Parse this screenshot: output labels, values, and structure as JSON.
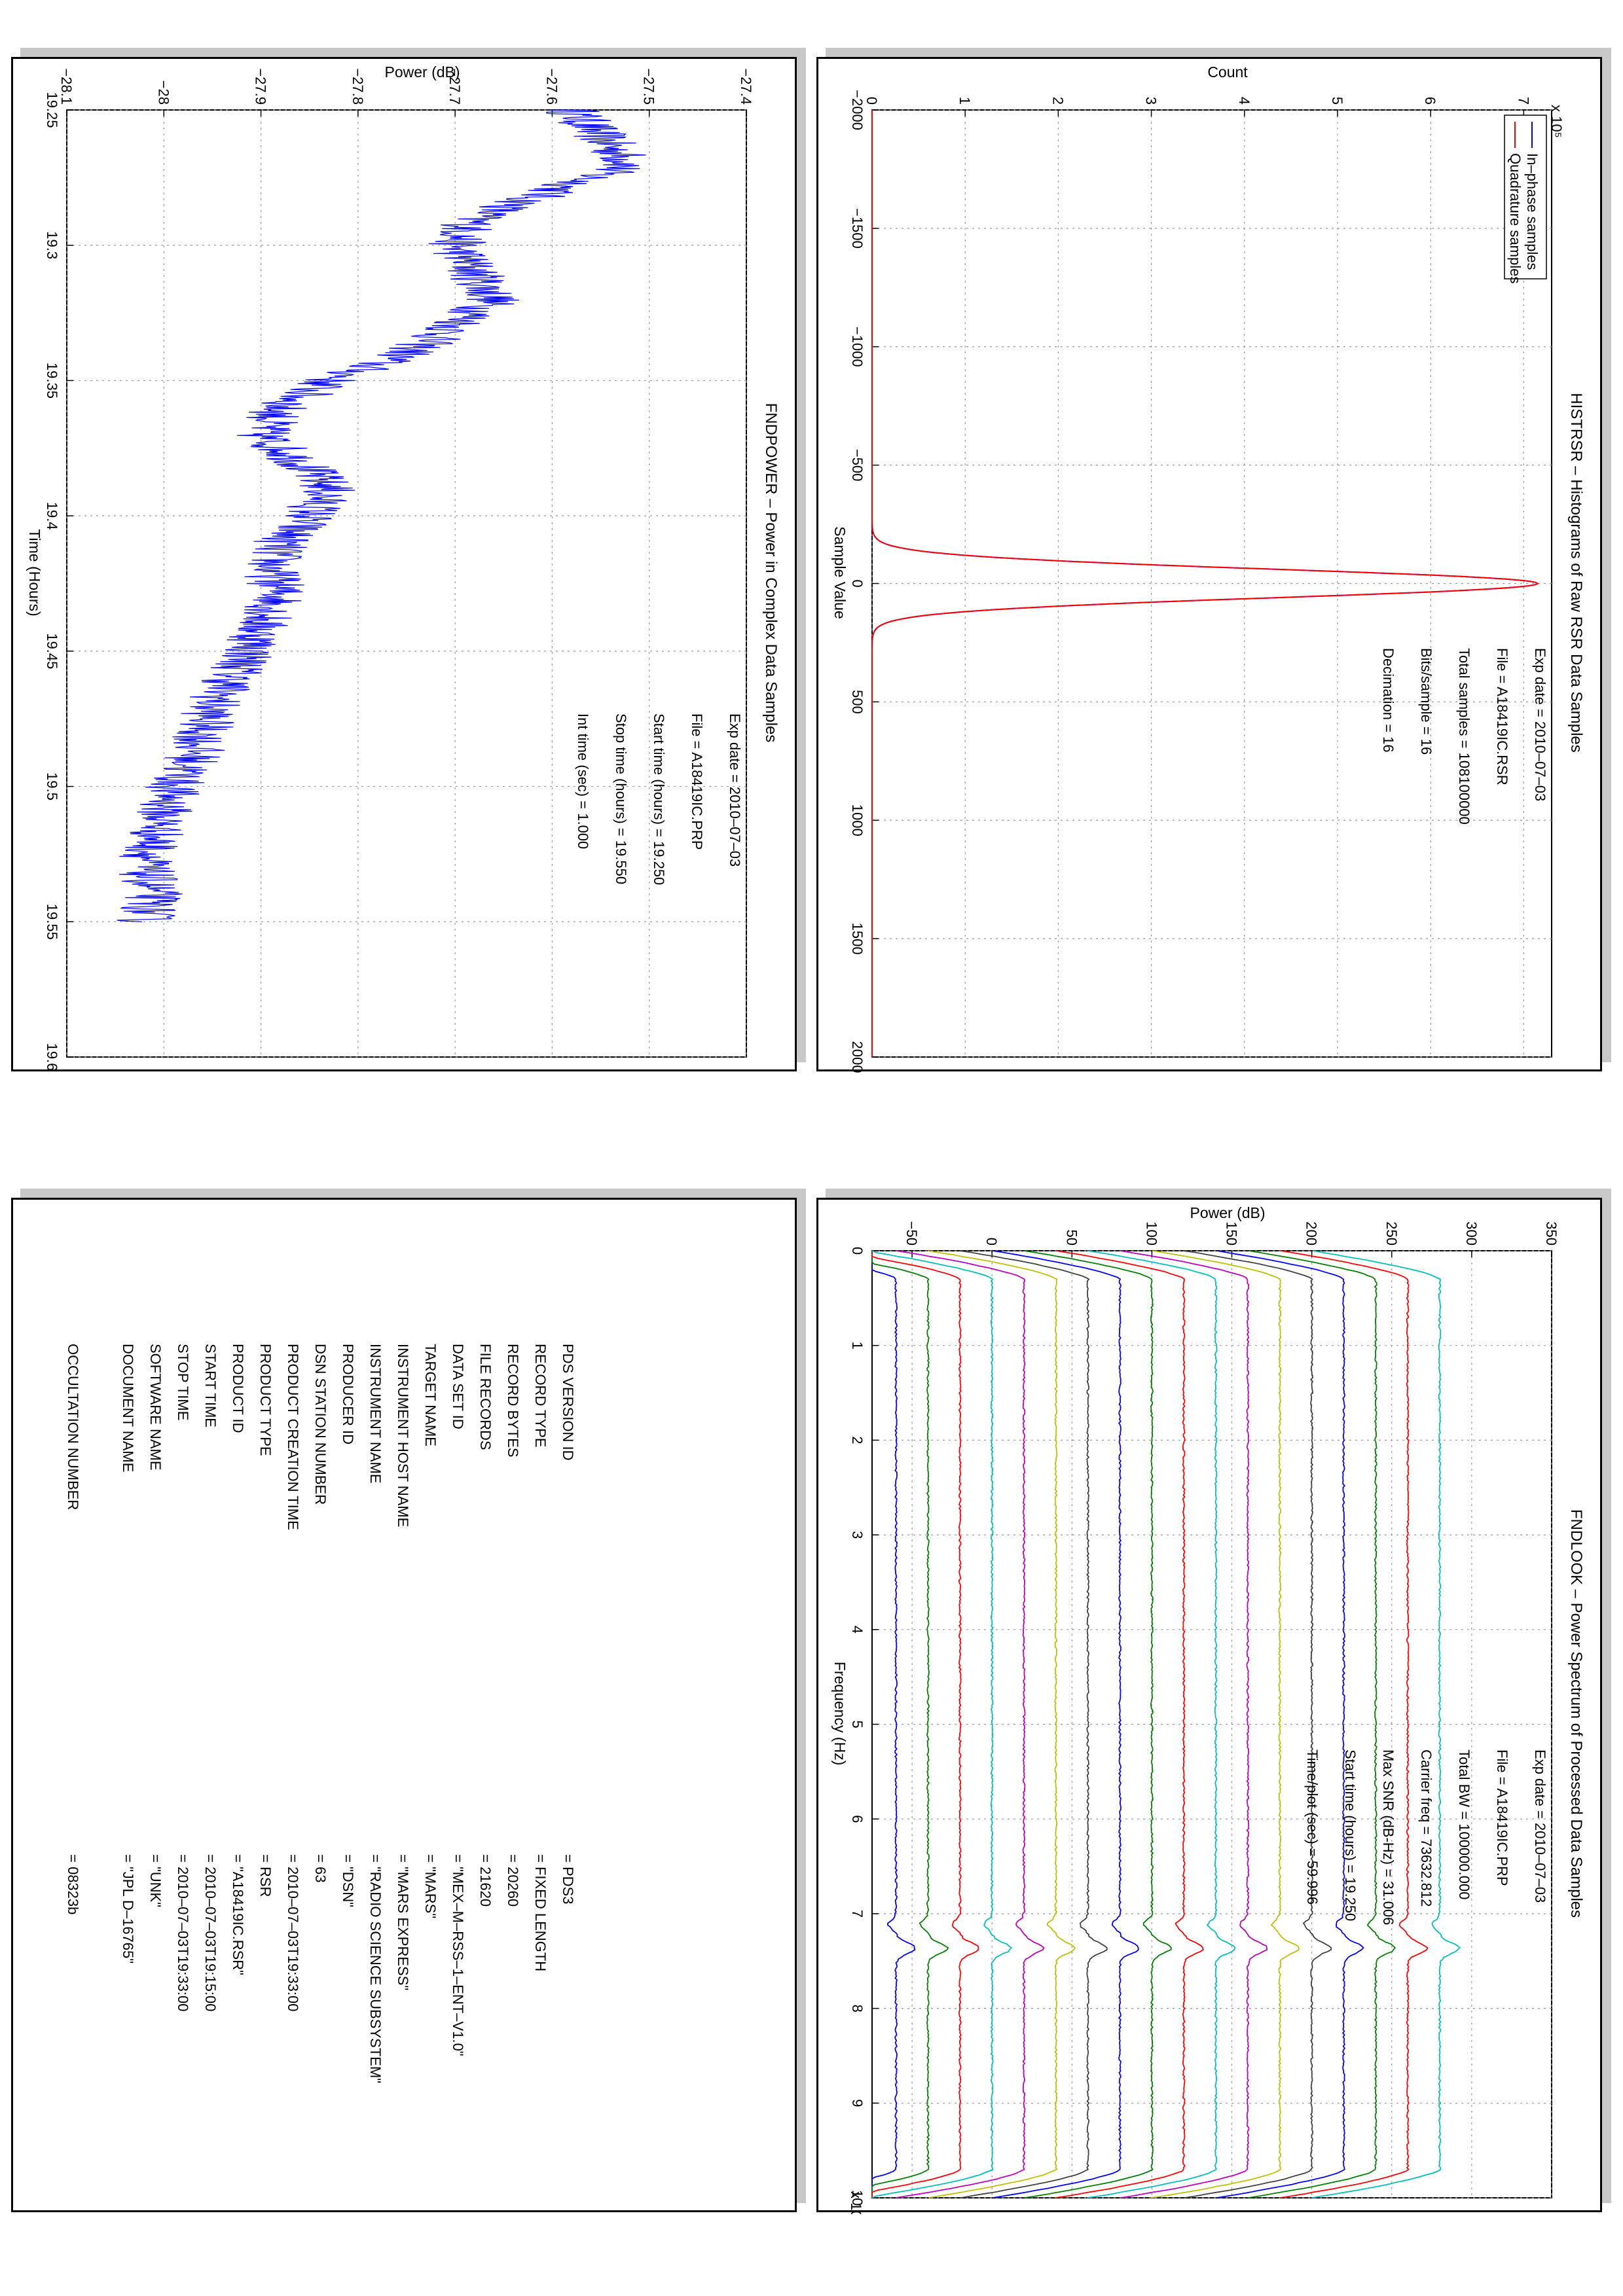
{
  "histrsr": {
    "title": "HISTRSR – Histograms of Raw RSR Data Samples",
    "xlabel": "Sample Value",
    "ylabel": "Count",
    "y_exponent": "x 10⁵",
    "legend": [
      "In–phase samples",
      "Quadrature samples"
    ],
    "info": [
      "Exp date = 2010–07–03",
      "File = A18419IC.RSR",
      "Total samples =  108100000",
      "Bits/sample   =       16",
      "Decimation    =       16"
    ]
  },
  "fndpower": {
    "title": "FNDPOWER – Power in Complex Data Samples",
    "xlabel": "Time (Hours)",
    "ylabel": "Power (dB)",
    "info": [
      "Exp date = 2010–07–03",
      "File = A18419IC.PRP",
      "Start time (hours) = 19.250",
      "Stop time (hours)  = 19.550",
      "Int time (sec) =       1.000"
    ]
  },
  "fndlook": {
    "title": "FNDLOOK – Power Spectrum of Processed Data Samples",
    "xlabel": "Frequency (Hz)",
    "ylabel": "Power (dB)",
    "x_exponent": "x 10⁴",
    "info": [
      "Exp date = 2010–07–03",
      "File = A18419IC.PRP",
      "Total BW =   100000.000",
      "Carrier freq =   73632.812",
      "Max SNR (dB-Hz) =    31.006",
      "Start time (hours) =   19.250",
      "Time/plot (sec) =    59.996"
    ]
  },
  "label": {
    "rows": [
      {
        "key": "PDS VERSION ID",
        "value": "=  PDS3"
      },
      {
        "key": "RECORD TYPE",
        "value": "=  FIXED LENGTH"
      },
      {
        "key": "RECORD BYTES",
        "value": "=  20260"
      },
      {
        "key": "FILE RECORDS",
        "value": "=  21620"
      },
      {
        "key": "DATA SET ID",
        "value": "=  \"MEX–M–RSS–1–ENT–V1.0\""
      },
      {
        "key": "TARGET NAME",
        "value": "=  \"MARS\""
      },
      {
        "key": "INSTRUMENT HOST NAME",
        "value": "=  \"MARS EXPRESS\""
      },
      {
        "key": "INSTRUMENT NAME",
        "value": "=  \"RADIO SCIENCE SUBSYSTEM\""
      },
      {
        "key": "PRODUCER ID",
        "value": "=  \"DSN\""
      },
      {
        "key": "DSN STATION NUMBER",
        "value": "=  63"
      },
      {
        "key": "PRODUCT CREATION TIME",
        "value": "=  2010–07–03T19:33:00"
      },
      {
        "key": "PRODUCT TYPE",
        "value": "=  RSR"
      },
      {
        "key": "PRODUCT ID",
        "value": "=  \"A18419IC.RSR\""
      },
      {
        "key": "START TIME",
        "value": "=  2010–07–03T19:15:00"
      },
      {
        "key": "STOP TIME",
        "value": "=  2010–07–03T19:33:00"
      },
      {
        "key": "SOFTWARE NAME",
        "value": "=  \"UNK\""
      },
      {
        "key": "DOCUMENT NAME",
        "value": "=  \"JPL D–16765\""
      },
      {
        "key": "",
        "value": ""
      },
      {
        "key": "OCCULTATION NUMBER",
        "value": "=  08323b"
      }
    ]
  },
  "chart_data": [
    {
      "id": "histrsr",
      "type": "line",
      "title": "HISTRSR – Histograms of Raw RSR Data Samples",
      "xlabel": "Sample Value",
      "ylabel": "Count",
      "xlim": [
        -2000,
        2000
      ],
      "ylim": [
        0,
        7.3
      ],
      "y_scale_note": "x 10^5",
      "xticks": [
        -2000,
        -1500,
        -1000,
        -500,
        0,
        500,
        1000,
        1500,
        2000
      ],
      "yticks": [
        0,
        1,
        2,
        3,
        4,
        5,
        6,
        7
      ],
      "grid": true,
      "legend_position": "top-left",
      "series": [
        {
          "name": "In–phase samples",
          "color": "#0000ff",
          "peak": 7.15,
          "center": 0,
          "sigma": 60
        },
        {
          "name": "Quadrature samples",
          "color": "#ff0000",
          "peak": 7.15,
          "center": 0,
          "sigma": 60
        }
      ]
    },
    {
      "id": "fndpower",
      "type": "line",
      "title": "FNDPOWER – Power in Complex Data Samples",
      "xlabel": "Time (Hours)",
      "ylabel": "Power (dB)",
      "xlim": [
        19.25,
        19.6
      ],
      "ylim": [
        -28.1,
        -27.4
      ],
      "xticks": [
        19.25,
        19.3,
        19.35,
        19.4,
        19.45,
        19.5,
        19.55,
        19.6
      ],
      "yticks": [
        -28.1,
        -28,
        -27.9,
        -27.8,
        -27.7,
        -27.6,
        -27.5,
        -27.4
      ],
      "grid": true,
      "series": [
        {
          "color": "#0000ff",
          "x": [
            19.25,
            19.26,
            19.27,
            19.28,
            19.29,
            19.3,
            19.31,
            19.32,
            19.33,
            19.34,
            19.35,
            19.36,
            19.37,
            19.38,
            19.39,
            19.4,
            19.41,
            19.42,
            19.43,
            19.44,
            19.45,
            19.46,
            19.47,
            19.48,
            19.49,
            19.5,
            19.51,
            19.52,
            19.53,
            19.54,
            19.55
          ],
          "y": [
            -27.58,
            -27.55,
            -27.52,
            -27.6,
            -27.68,
            -27.7,
            -27.68,
            -27.66,
            -27.7,
            -27.75,
            -27.83,
            -27.88,
            -27.9,
            -27.86,
            -27.83,
            -27.85,
            -27.88,
            -27.89,
            -27.88,
            -27.9,
            -27.91,
            -27.93,
            -27.95,
            -27.96,
            -27.97,
            -27.99,
            -28.0,
            -28.01,
            -28.02,
            -28.01,
            -28.02
          ],
          "noise": 0.03
        }
      ]
    },
    {
      "id": "fndlook",
      "type": "line",
      "title": "FNDLOOK – Power Spectrum of Processed Data Samples",
      "xlabel": "Frequency (Hz)",
      "ylabel": "Power (dB)",
      "xlim": [
        0,
        10
      ],
      "x_scale_note": "x 10^4",
      "ylim": [
        -75,
        350
      ],
      "xticks": [
        0,
        1,
        2,
        3,
        4,
        5,
        6,
        7,
        8,
        9,
        10
      ],
      "yticks": [
        -50,
        0,
        50,
        100,
        150,
        200,
        250,
        300,
        350
      ],
      "grid": true,
      "spectra_offsets": [
        -60,
        -40,
        -20,
        0,
        20,
        40,
        60,
        80,
        100,
        120,
        140,
        160,
        180,
        200,
        220,
        240,
        260,
        280
      ],
      "spectra_colors": [
        "#0000ff",
        "#008000",
        "#ff0000",
        "#00bfbf",
        "#bf00bf",
        "#bfbf00",
        "#404040",
        "#0000ff",
        "#008000",
        "#ff0000",
        "#00bfbf",
        "#bf00bf",
        "#bfbf00",
        "#404040",
        "#0000ff",
        "#008000",
        "#ff0000",
        "#00bfbf"
      ],
      "carrier_freq": 7.3632812,
      "band_edges": [
        0.3,
        9.7
      ]
    }
  ]
}
